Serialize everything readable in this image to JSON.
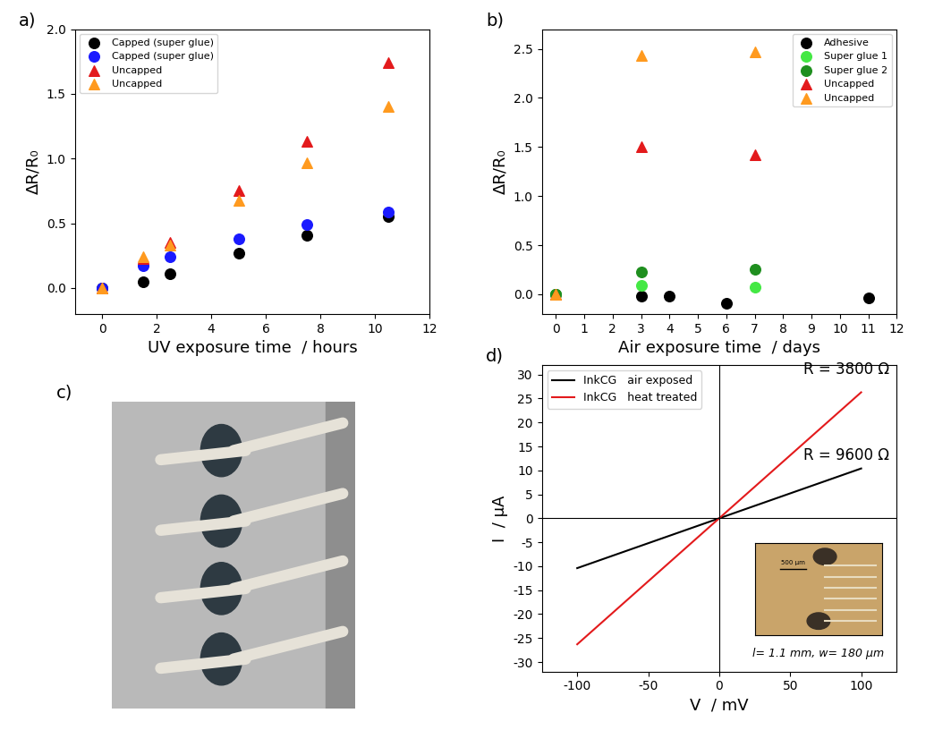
{
  "chart_data": [
    {
      "type": "scatter",
      "title": "a)",
      "x_label": "UV exposure time  / hours",
      "y_label": "ΔR/R₀",
      "xlim": [
        -1,
        12
      ],
      "xticks": [
        0,
        2,
        4,
        6,
        8,
        10,
        12
      ],
      "ylim": [
        -0.2,
        2.0
      ],
      "yticks": [
        {
          "value": 0,
          "label": "0.0"
        },
        {
          "value": 0.5,
          "label": "0.5"
        },
        {
          "value": 1.0,
          "label": "1.0"
        },
        {
          "value": 1.5,
          "label": "1.5"
        },
        {
          "value": 2.0,
          "label": "2.0"
        }
      ],
      "legend": "upper left",
      "series": [
        {
          "name": "Capped (super glue)",
          "color": "#000000",
          "marker": "circle",
          "x": [
            0,
            1.5,
            2.5,
            5,
            7.5,
            10.5
          ],
          "values": [
            0,
            0.05,
            0.11,
            0.27,
            0.41,
            0.55
          ]
        },
        {
          "name": "Capped (super glue)",
          "color": "#1a1aff",
          "marker": "circle",
          "x": [
            0,
            1.5,
            2.5,
            5,
            7.5,
            10.5
          ],
          "values": [
            0,
            0.17,
            0.24,
            0.38,
            0.49,
            0.59
          ]
        },
        {
          "name": "Uncapped",
          "color": "#e31a1c",
          "marker": "triangle",
          "x": [
            0,
            1.5,
            2.5,
            5,
            7.5,
            10.5
          ],
          "values": [
            0,
            0.23,
            0.35,
            0.75,
            1.13,
            1.74
          ]
        },
        {
          "name": "Uncapped",
          "color": "#ff9a1f",
          "marker": "triangle",
          "x": [
            0,
            1.5,
            2.5,
            5,
            7.5,
            10.5
          ],
          "values": [
            0,
            0.24,
            0.33,
            0.68,
            0.97,
            1.4
          ]
        }
      ]
    },
    {
      "type": "scatter",
      "title": "b)",
      "x_label": "Air exposure time  / days",
      "y_label": "ΔR/R₀",
      "xlim": [
        -0.5,
        12
      ],
      "xticks": [
        0,
        1,
        2,
        3,
        4,
        5,
        6,
        7,
        8,
        9,
        10,
        11,
        12
      ],
      "ylim": [
        -0.2,
        2.7
      ],
      "yticks": [
        {
          "value": 0,
          "label": "0.0"
        },
        {
          "value": 0.5,
          "label": "0.5"
        },
        {
          "value": 1.0,
          "label": "1.0"
        },
        {
          "value": 1.5,
          "label": "1.5"
        },
        {
          "value": 2.0,
          "label": "2.0"
        },
        {
          "value": 2.5,
          "label": "2.5"
        }
      ],
      "legend": "upper right",
      "series": [
        {
          "name": "Adhesive",
          "color": "#000000",
          "marker": "circle",
          "x": [
            0,
            3,
            4,
            6,
            11
          ],
          "values": [
            0,
            -0.02,
            -0.02,
            -0.09,
            -0.04
          ]
        },
        {
          "name": "Super glue 1",
          "color": "#44e844",
          "marker": "circle",
          "x": [
            0,
            3,
            7
          ],
          "values": [
            0,
            0.09,
            0.07
          ]
        },
        {
          "name": "Super glue 2",
          "color": "#1f8f1f",
          "marker": "circle",
          "x": [
            0,
            3,
            7
          ],
          "values": [
            0,
            0.23,
            0.25
          ]
        },
        {
          "name": "Uncapped",
          "color": "#e31a1c",
          "marker": "triangle",
          "x": [
            0,
            3,
            7
          ],
          "values": [
            0,
            1.5,
            1.42
          ]
        },
        {
          "name": "Uncapped",
          "color": "#ff9a1f",
          "marker": "triangle",
          "x": [
            0,
            3,
            7
          ],
          "values": [
            0,
            2.43,
            2.47
          ]
        }
      ]
    },
    {
      "type": "image",
      "title": "c)"
    },
    {
      "type": "line",
      "title": "d)",
      "x_label": "V  / mV",
      "y_label": "I  / µA",
      "xlim": [
        -125,
        125
      ],
      "xticks": [
        -100,
        -50,
        0,
        50,
        100
      ],
      "ylim": [
        -32,
        32
      ],
      "yticks": [
        -30,
        -25,
        -20,
        -15,
        -10,
        -5,
        0,
        5,
        10,
        15,
        20,
        25,
        30
      ],
      "legend": "upper left",
      "annotations": [
        "R = 3800 Ω",
        "R = 9600 Ω",
        "500 µm",
        "l= 1.1 mm, w= 180 µm"
      ],
      "series": [
        {
          "name": "InkCG   air exposed",
          "color": "#000000",
          "line_style": "solid",
          "x": [
            -100,
            0,
            100
          ],
          "values": [
            -10.4,
            0,
            10.4
          ]
        },
        {
          "name": "InkCG   heat treated",
          "color": "#e31a1c",
          "line_style": "solid",
          "x": [
            -100,
            0,
            100
          ],
          "values": [
            -26.3,
            0,
            26.3
          ]
        }
      ]
    }
  ]
}
